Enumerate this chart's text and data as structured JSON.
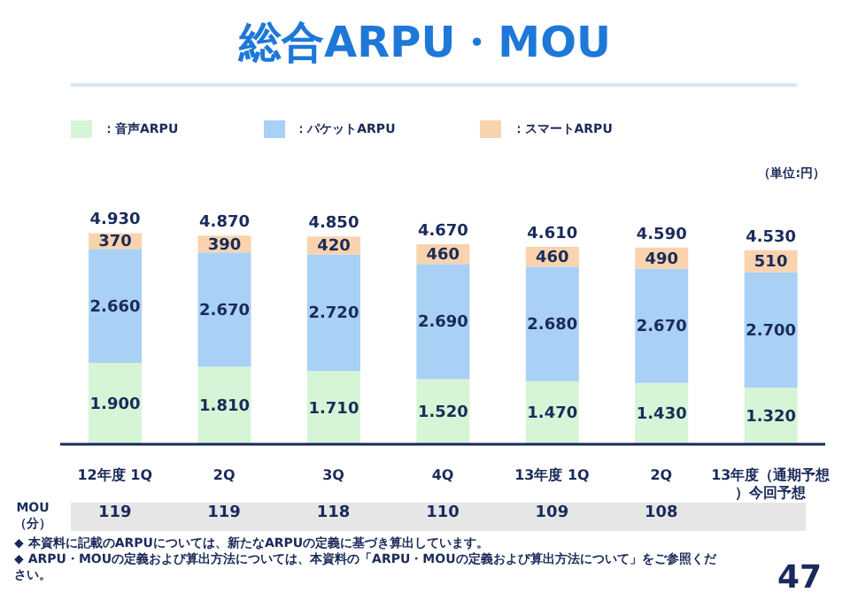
{
  "chart_data": {
    "type": "bar",
    "title": "総合ARPU・MOU",
    "stacked": true,
    "legend": "top left",
    "categories": [
      "12年度 1Q",
      "2Q",
      "3Q",
      "4Q",
      "13年度 1Q",
      "2Q",
      "13年度（通期予想）今回予想"
    ],
    "series": [
      {
        "name": "：音声ARPU",
        "color": "#d6f5d6",
        "values": [
          1900,
          1810,
          1710,
          1520,
          1470,
          1430,
          1320
        ],
        "value_labels": [
          "1.900",
          "1.810",
          "1.710",
          "1.520",
          "1.470",
          "1.430",
          "1.320"
        ]
      },
      {
        "name": "：パケットARPU",
        "color": "#a9d0f5",
        "values": [
          2660,
          2670,
          2720,
          2690,
          2680,
          2670,
          2700
        ],
        "value_labels": [
          "2.660",
          "2.670",
          "2.720",
          "2.690",
          "2.680",
          "2.670",
          "2.700"
        ]
      },
      {
        "name": "：スマートARPU",
        "color": "#f9d3ad",
        "values": [
          370,
          390,
          420,
          460,
          460,
          490,
          510
        ],
        "value_labels": [
          "370",
          "390",
          "420",
          "460",
          "460",
          "490",
          "510"
        ]
      }
    ],
    "totals": [
      "4.930",
      "4.870",
      "4.850",
      "4.670",
      "4.610",
      "4.590",
      "4.530"
    ],
    "annotations": [
      "（単位:円）",
      "MOU\n（分）",
      "119",
      "119",
      "118",
      "110",
      "109",
      "108",
      "◆ 本資料に記載のARPUについては、新たなARPUの定義に基づき算出しています。",
      "◆ ARPU・MOUの定義および算出方法については、本資料の「ARPU・MOUの定義および算出方法について」をご参照ください。",
      "47"
    ]
  }
}
